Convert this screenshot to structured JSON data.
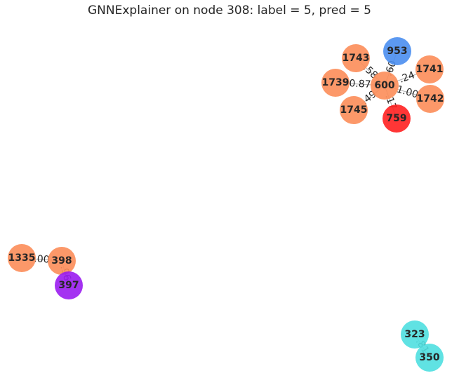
{
  "title": "GNNExplainer on node 308: label = 5, pred = 5",
  "colors": {
    "orange": "#fc8d59",
    "blue": "#4a8ef0",
    "red": "#ff2020",
    "purple": "#9a1cf0",
    "cyan": "#4fdfe0"
  },
  "nodes": [
    {
      "id": "1743",
      "label": "1743",
      "color": "orange"
    },
    {
      "id": "953",
      "label": "953",
      "color": "blue"
    },
    {
      "id": "1741",
      "label": "1741",
      "color": "orange"
    },
    {
      "id": "1739",
      "label": "1739",
      "color": "orange"
    },
    {
      "id": "600",
      "label": "600",
      "color": "orange"
    },
    {
      "id": "1742",
      "label": "1742",
      "color": "orange"
    },
    {
      "id": "1745",
      "label": "1745",
      "color": "orange"
    },
    {
      "id": "759",
      "label": "759",
      "color": "red"
    },
    {
      "id": "1335",
      "label": "1335",
      "color": "orange"
    },
    {
      "id": "398",
      "label": "398",
      "color": "orange"
    },
    {
      "id": "397",
      "label": "397",
      "color": "purple"
    },
    {
      "id": "323",
      "label": "323",
      "color": "cyan"
    },
    {
      "id": "350",
      "label": "350",
      "color": "cyan"
    }
  ],
  "edges": [
    {
      "source": "600",
      "target": "1743",
      "weight": ".58"
    },
    {
      "source": "600",
      "target": "953",
      "weight": ".60"
    },
    {
      "source": "600",
      "target": "1741",
      "weight": ".24"
    },
    {
      "source": "600",
      "target": "1739",
      "weight": "0.87"
    },
    {
      "source": "600",
      "target": "1742",
      "weight": "1.00"
    },
    {
      "source": "600",
      "target": "1745",
      "weight": ".49"
    },
    {
      "source": "600",
      "target": "759",
      "weight": ".17"
    },
    {
      "source": "1335",
      "target": "398",
      "weight": ".00"
    },
    {
      "source": "398",
      "target": "397",
      "weight": ".96"
    },
    {
      "source": "323",
      "target": "350",
      "weight": ".81"
    }
  ]
}
